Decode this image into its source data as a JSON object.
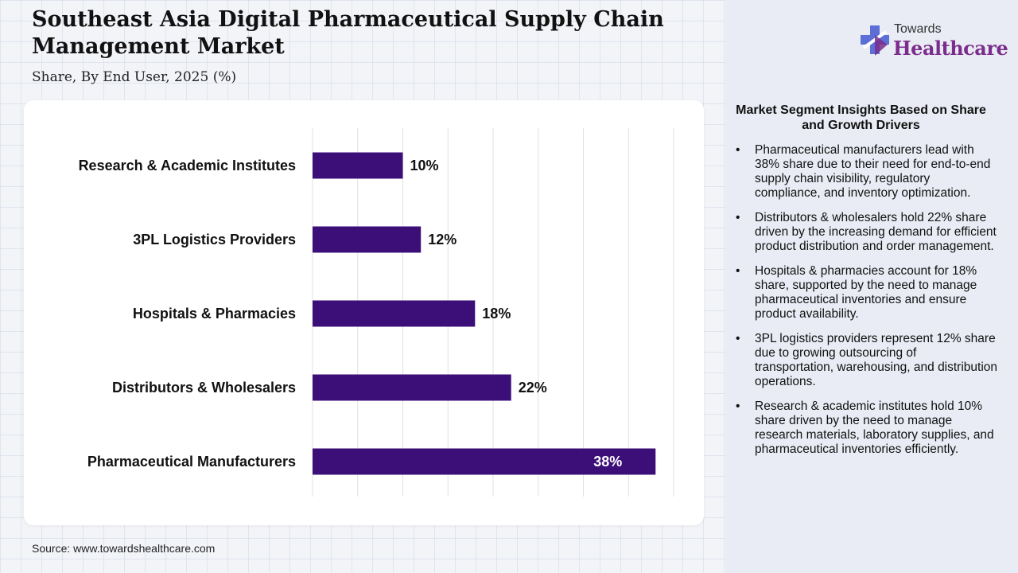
{
  "header": {
    "title": "Southeast Asia Digital Pharmaceutical Supply Chain Management Market",
    "subtitle": "Share, By End User, 2025 (%)"
  },
  "source": "Source: www.towardshealthcare.com",
  "logo": {
    "small": "Towards",
    "big": "Healthcare",
    "icon": "medical-cross-icon",
    "colors": [
      "#5b6fd6",
      "#7a2d8c"
    ]
  },
  "chart_data": {
    "type": "bar",
    "orientation": "horizontal",
    "categories": [
      "Research & Academic Institutes",
      "3PL Logistics Providers",
      "Hospitals & Pharmacies",
      "Distributors & Wholesalers",
      "Pharmaceutical Manufacturers"
    ],
    "values": [
      10,
      12,
      18,
      22,
      38
    ],
    "value_labels": [
      "10%",
      "12%",
      "18%",
      "22%",
      "38%"
    ],
    "xlim": [
      0,
      40
    ],
    "grid": true,
    "bar_color": "#3c0f78"
  },
  "insights": {
    "heading": "Market Segment Insights Based on Share and Growth Drivers",
    "bullet": "•",
    "items": [
      "Pharmaceutical manufacturers lead with 38% share due to their need for end-to-end supply chain visibility, regulatory compliance, and inventory optimization.",
      "Distributors & wholesalers hold 22% share driven by the increasing demand for efficient product distribution and order management.",
      "Hospitals & pharmacies account for 18% share, supported by the need to manage pharmaceutical inventories and ensure product availability.",
      "3PL logistics providers represent 12% share due to growing outsourcing of transportation, warehousing, and distribution operations.",
      "Research & academic institutes hold 10% share driven by the need to manage research materials, laboratory supplies, and pharmaceutical inventories efficiently."
    ]
  }
}
